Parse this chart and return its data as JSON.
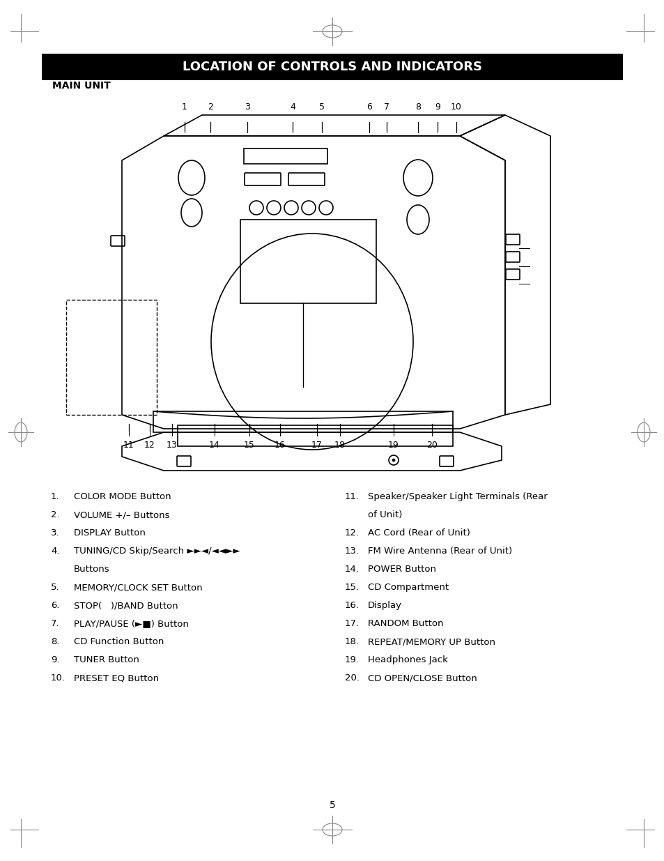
{
  "title": "LOCATION OF CONTROLS AND INDICATORS",
  "title_bg": "#000000",
  "title_color": "#ffffff",
  "section_label": "MAIN UNIT",
  "top_numbers": [
    "1",
    "2",
    "3",
    "4",
    "5",
    "6",
    "7",
    "8",
    "9",
    "10"
  ],
  "bottom_numbers": [
    "11",
    "12",
    "13",
    "14",
    "15",
    "16",
    "17",
    "18",
    "19",
    "20"
  ],
  "left_items": [
    "1.   COLOR MODE Button",
    "2.   VOLUME +/– Buttons",
    "3.   DISPLAY Button",
    "4.   TUNING/CD Skip/Search ►►|◄◄/◄◄►►|\n      Buttons",
    "5.   MEMORY/CLOCK SET Button",
    "6.   STOP(   )/BAND Button",
    "7.   PLAY/PAUSE (►■) Button",
    "8.   CD Function Button",
    "9.   TUNER Button",
    "10.  PRESET EQ Button"
  ],
  "right_items": [
    "11.  Speaker/Speaker Light Terminals (Rear\n      of Unit)",
    "12.  AC Cord (Rear of Unit)",
    "13.  FM Wire Antenna (Rear of Unit)",
    "14.  POWER Button",
    "15.  CD Compartment",
    "16.  Display",
    "17.  RANDOM Button",
    "18.  REPEAT/MEMORY UP Button",
    "19.  Headphones Jack",
    "20.  CD OPEN/CLOSE Button"
  ],
  "page_number": "5",
  "bg_color": "#ffffff",
  "line_color": "#000000",
  "text_color": "#000000"
}
